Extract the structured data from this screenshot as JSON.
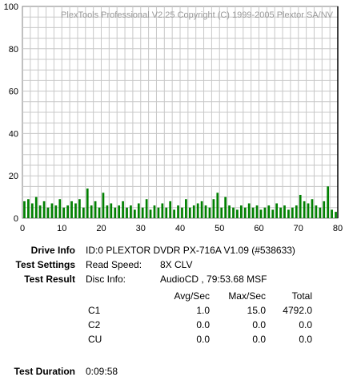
{
  "chart_data": {
    "type": "bar",
    "title": "PlexTools Professional V2.25 Copyright (C) 1999-2005 Plextor SA/NV",
    "xlim": [
      0,
      80
    ],
    "ylim": [
      0,
      100
    ],
    "x_ticks": [
      "0",
      "10",
      "20",
      "30",
      "40",
      "50",
      "60",
      "70",
      "80"
    ],
    "y_ticks": [
      "0",
      "20",
      "40",
      "60",
      "80",
      "100"
    ],
    "grid": true,
    "bar_color": "#008000",
    "marker_x": 80,
    "marker_color": "#000000",
    "series": [
      {
        "name": "C1",
        "x": [
          0.5,
          1.5,
          2.5,
          3.5,
          4.5,
          5.5,
          6.5,
          7.5,
          8.5,
          9.5,
          10.5,
          11.5,
          12.5,
          13.5,
          14.5,
          15.5,
          16.5,
          17.5,
          18.5,
          19.5,
          20.5,
          21.5,
          22.5,
          23.5,
          24.5,
          25.5,
          26.5,
          27.5,
          28.5,
          29.5,
          30.5,
          31.5,
          32.5,
          33.5,
          34.5,
          35.5,
          36.5,
          37.5,
          38.5,
          39.5,
          40.5,
          41.5,
          42.5,
          43.5,
          44.5,
          45.5,
          46.5,
          47.5,
          48.5,
          49.5,
          50.5,
          51.5,
          52.5,
          53.5,
          54.5,
          55.5,
          56.5,
          57.5,
          58.5,
          59.5,
          60.5,
          61.5,
          62.5,
          63.5,
          64.5,
          65.5,
          66.5,
          67.5,
          68.5,
          69.5,
          70.5,
          71.5,
          72.5,
          73.5,
          74.5,
          75.5,
          76.5,
          77.5,
          78.5,
          79.5
        ],
        "values": [
          8,
          9,
          7,
          10,
          6,
          8,
          5,
          7,
          6,
          9,
          5,
          6,
          8,
          7,
          9,
          5,
          14,
          6,
          8,
          5,
          12,
          6,
          7,
          5,
          6,
          8,
          5,
          6,
          4,
          7,
          5,
          9,
          4,
          6,
          5,
          7,
          5,
          8,
          4,
          6,
          5,
          9,
          5,
          6,
          7,
          8,
          6,
          5,
          9,
          12,
          5,
          10,
          6,
          5,
          4,
          6,
          5,
          7,
          5,
          6,
          4,
          5,
          6,
          4,
          7,
          5,
          6,
          4,
          5,
          6,
          11,
          8,
          7,
          9,
          6,
          5,
          8,
          15,
          4,
          3
        ]
      }
    ]
  },
  "info": {
    "drive_label": "Drive Info",
    "drive_value": "ID:0 PLEXTOR DVDR PX-716A V1.09 (#538633)",
    "settings_label": "Test Settings",
    "read_speed_label": "Read Speed:",
    "read_speed_value": "8X CLV",
    "result_label": "Test Result",
    "disc_info_label": "Disc Info:",
    "disc_info_value": "AudioCD , 79:53.68 MSF",
    "col_avg": "Avg/Sec",
    "col_max": "Max/Sec",
    "col_total": "Total",
    "rows": [
      {
        "name": "C1",
        "avg": "1.0",
        "max": "15.0",
        "total": "4792.0"
      },
      {
        "name": "C2",
        "avg": "0.0",
        "max": "0.0",
        "total": "0.0"
      },
      {
        "name": "CU",
        "avg": "0.0",
        "max": "0.0",
        "total": "0.0"
      }
    ],
    "duration_label": "Test Duration",
    "duration_value": "0:09:58"
  }
}
